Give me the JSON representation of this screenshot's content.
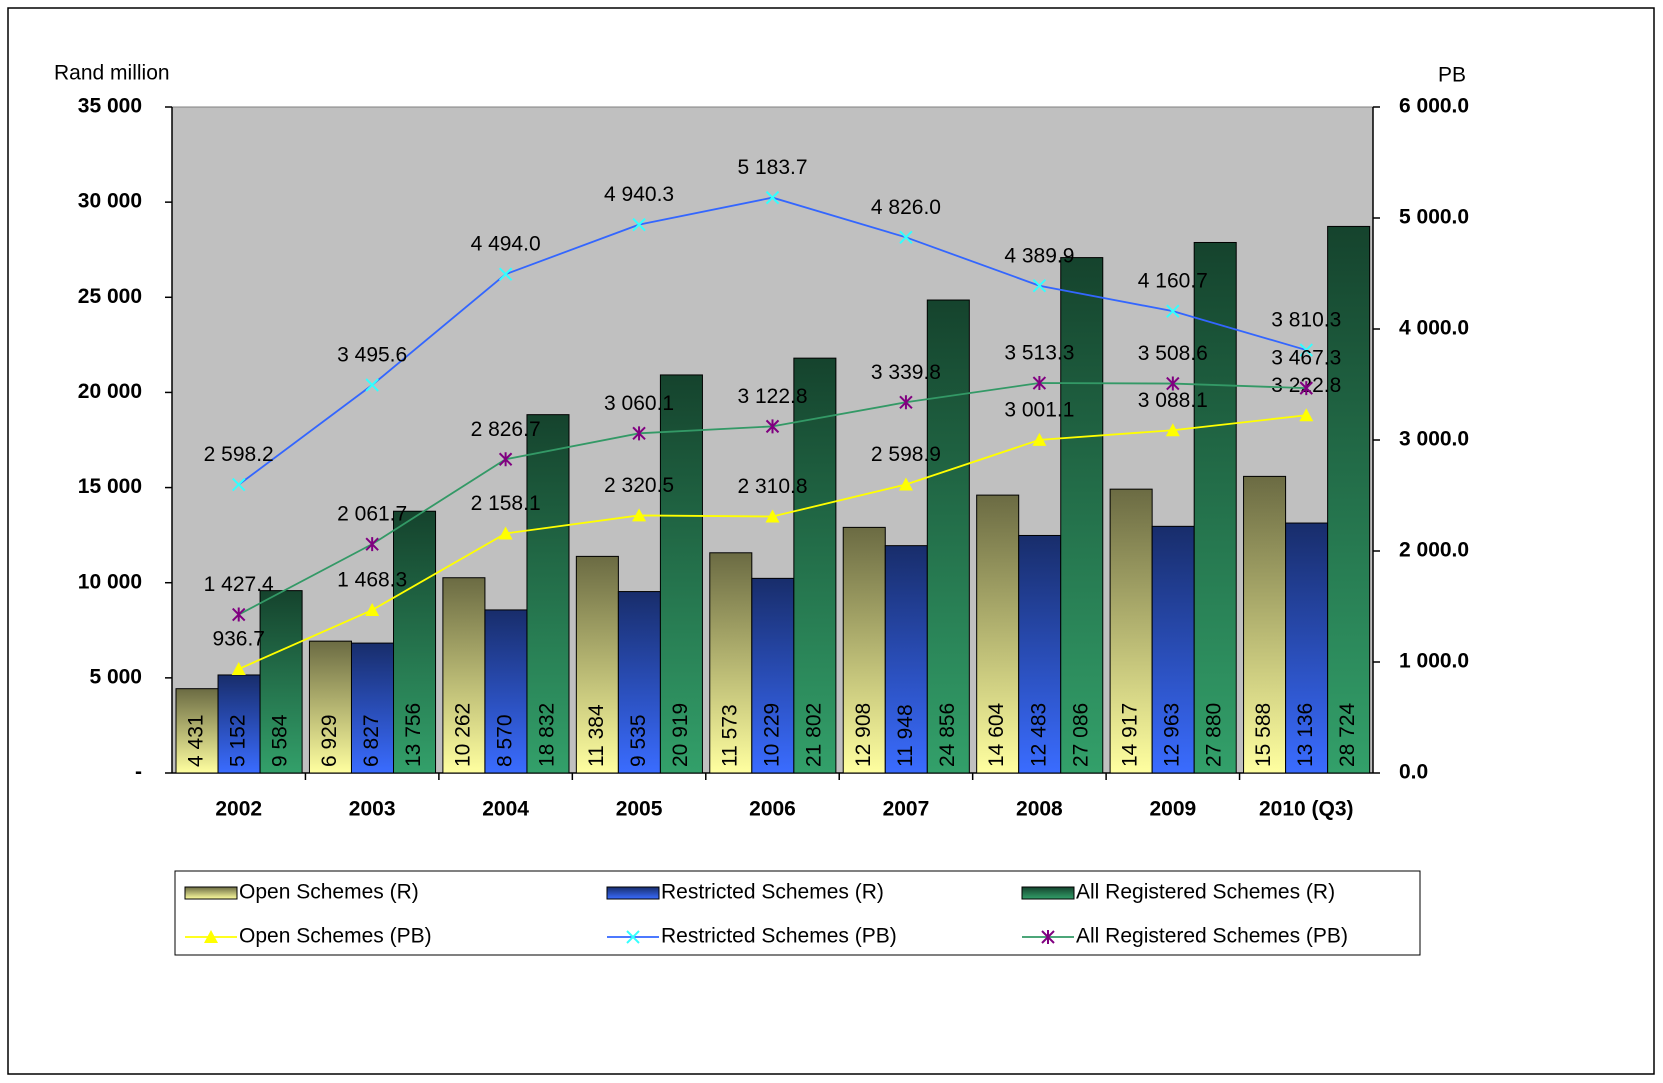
{
  "chart_data": {
    "type": "bar",
    "ylabel": "Rand million",
    "y2label": "PB",
    "categories": [
      "2002",
      "2003",
      "2004",
      "2005",
      "2006",
      "2007",
      "2008",
      "2009",
      "2010 (Q3)"
    ],
    "ylim": [
      0,
      35000
    ],
    "yticks": [
      {
        "value": 0,
        "label": "-"
      },
      {
        "value": 5000,
        "label": "5 000"
      },
      {
        "value": 10000,
        "label": "10 000"
      },
      {
        "value": 15000,
        "label": "15 000"
      },
      {
        "value": 20000,
        "label": "20 000"
      },
      {
        "value": 25000,
        "label": "25 000"
      },
      {
        "value": 30000,
        "label": "30 000"
      },
      {
        "value": 35000,
        "label": "35 000"
      }
    ],
    "y2lim": [
      0,
      6000
    ],
    "y2ticks": [
      {
        "value": 0,
        "label": "0.0"
      },
      {
        "value": 1000,
        "label": "1 000.0"
      },
      {
        "value": 2000,
        "label": "2 000.0"
      },
      {
        "value": 3000,
        "label": "3 000.0"
      },
      {
        "value": 4000,
        "label": "4 000.0"
      },
      {
        "value": 5000,
        "label": "5 000.0"
      },
      {
        "value": 6000,
        "label": "6 000.0"
      }
    ],
    "series": [
      {
        "name": "Open Schemes (R)",
        "type": "bar",
        "color": "#ffffa0",
        "values": [
          4431,
          6929,
          10262,
          11384,
          11573,
          12908,
          14604,
          14917,
          15588
        ],
        "value_labels": [
          "4 431",
          "6 929",
          "10 262",
          "11 384",
          "11 573",
          "12 908",
          "14 604",
          "14 917",
          "15 588"
        ]
      },
      {
        "name": "Restricted Schemes (R)",
        "type": "bar",
        "color": "#3a6cff",
        "values": [
          5152,
          6827,
          8570,
          9535,
          10229,
          11948,
          12483,
          12963,
          13136
        ],
        "value_labels": [
          "5 152",
          "6 827",
          "8 570",
          "9 535",
          "10 229",
          "11 948",
          "12 483",
          "12 963",
          "13 136"
        ]
      },
      {
        "name": "All Registered Schemes (R)",
        "type": "bar",
        "color": "#33a06a",
        "values": [
          9584,
          13756,
          18832,
          20919,
          21802,
          24856,
          27086,
          27880,
          28724
        ],
        "value_labels": [
          "9 584",
          "13 756",
          "18 832",
          "20 919",
          "21 802",
          "24 856",
          "27 086",
          "27 880",
          "28 724"
        ]
      },
      {
        "name": "Open Schemes (PB)",
        "type": "line",
        "axis": "y2",
        "color": "#ffff00",
        "marker": "triangle",
        "marker_color": "#ffff00",
        "values": [
          936.7,
          1468.3,
          2158.1,
          2320.5,
          2310.8,
          2598.9,
          3001.1,
          3088.1,
          3222.8
        ],
        "value_labels": [
          "936.7",
          "1 468.3",
          "2 158.1",
          "2 320.5",
          "2 310.8",
          "2 598.9",
          "3 001.1",
          "3 088.1",
          "3 222.8"
        ]
      },
      {
        "name": "Restricted Schemes (PB)",
        "type": "line",
        "axis": "y2",
        "color": "#3366ff",
        "marker": "x",
        "marker_color": "#33ffff",
        "values": [
          2598.2,
          3495.6,
          4494.0,
          4940.3,
          5183.7,
          4826.0,
          4389.9,
          4160.7,
          3810.3
        ],
        "value_labels": [
          "2 598.2",
          "3 495.6",
          "4 494.0",
          "4 940.3",
          "5 183.7",
          "4 826.0",
          "4 389.9",
          "4 160.7",
          "3 810.3"
        ]
      },
      {
        "name": "All Registered Schemes (PB)",
        "type": "line",
        "axis": "y2",
        "color": "#339966",
        "marker": "star",
        "marker_color": "#800080",
        "values": [
          1427.4,
          2061.7,
          2826.7,
          3060.1,
          3122.8,
          3339.8,
          3513.3,
          3508.6,
          3467.3
        ],
        "value_labels": [
          "1 427.4",
          "2 061.7",
          "2 826.7",
          "3 060.1",
          "3 122.8",
          "3 339.8",
          "3 513.3",
          "3 508.6",
          "3 467.3"
        ]
      }
    ]
  }
}
